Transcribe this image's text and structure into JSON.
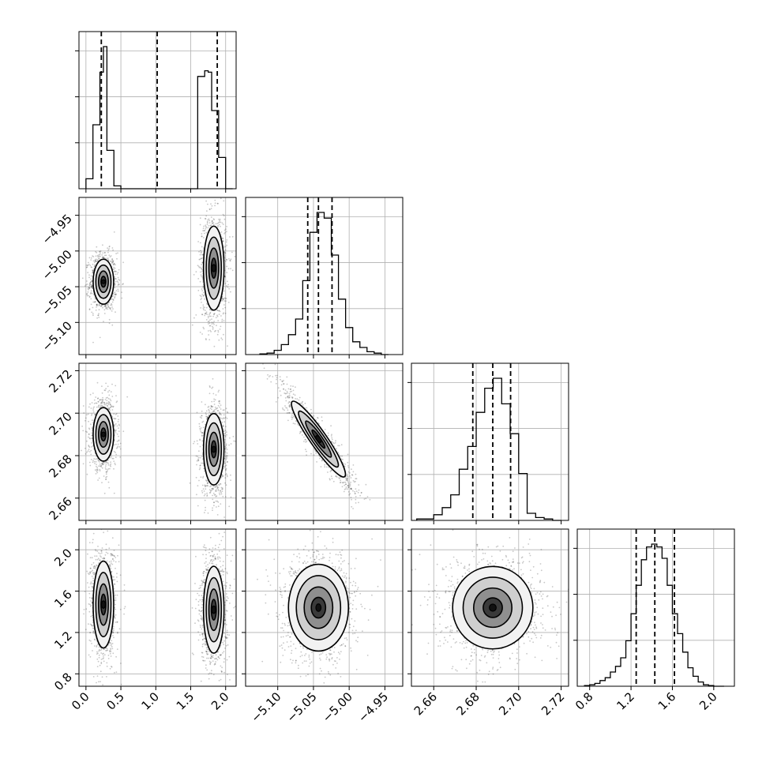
{
  "chart_data": {
    "type": "corner",
    "title": "",
    "note": "corner plot of 4 parameters: marginal histograms on the diagonal with dashed quantile lines, 2D density contours with scatter below",
    "parameters": [
      {
        "index": 0,
        "label": "",
        "range": [
          -0.1,
          2.15
        ],
        "ticks": [
          0.0,
          0.5,
          1.0,
          1.5,
          2.0
        ],
        "tick_labels": [
          "0.0",
          "0.5",
          "1.0",
          "1.5",
          "2.0"
        ],
        "quantile_lines": [
          0.22,
          1.02,
          1.88
        ]
      },
      {
        "index": 1,
        "label": "",
        "range": [
          -5.145,
          -4.925
        ],
        "ticks": [
          -5.1,
          -5.05,
          -5.0,
          -4.95
        ],
        "tick_labels": [
          "−5.10",
          "−5.05",
          "−5.00",
          "−4.95"
        ],
        "quantile_lines": [
          -5.058,
          -5.043,
          -5.024
        ]
      },
      {
        "index": 2,
        "label": "",
        "range": [
          2.6495,
          2.7235
        ],
        "ticks": [
          2.66,
          2.68,
          2.7,
          2.72
        ],
        "tick_labels": [
          "2.66",
          "2.68",
          "2.70",
          "2.72"
        ],
        "quantile_lines": [
          2.6784,
          2.6878,
          2.6962
        ]
      },
      {
        "index": 3,
        "label": "",
        "range": [
          0.68,
          2.2
        ],
        "ticks": [
          0.8,
          1.2,
          1.6,
          2.0
        ],
        "tick_labels": [
          "0.8",
          "1.2",
          "1.6",
          "2.0"
        ],
        "quantile_lines": [
          1.25,
          1.43,
          1.62
        ]
      }
    ],
    "histograms": [
      {
        "param": 0,
        "bin_edges": [
          0.0,
          0.1,
          0.2,
          0.25,
          0.3,
          0.4,
          0.5,
          0.6,
          1.6,
          1.7,
          1.75,
          1.8,
          1.9,
          2.0,
          2.1
        ],
        "counts": [
          0.07,
          0.45,
          0.82,
          1.0,
          0.27,
          0.02,
          0.0,
          0.0,
          0.79,
          0.83,
          0.82,
          0.55,
          0.22,
          0.0
        ]
      },
      {
        "param": 1,
        "bin_edges": [
          -5.125,
          -5.115,
          -5.105,
          -5.095,
          -5.085,
          -5.075,
          -5.065,
          -5.055,
          -5.045,
          -5.035,
          -5.025,
          -5.015,
          -5.005,
          -4.995,
          -4.985,
          -4.975,
          -4.965,
          -4.955,
          -4.945
        ],
        "counts": [
          0.005,
          0.01,
          0.03,
          0.07,
          0.14,
          0.25,
          0.52,
          0.86,
          1.0,
          0.96,
          0.7,
          0.39,
          0.19,
          0.09,
          0.05,
          0.02,
          0.01,
          0.0
        ]
      },
      {
        "param": 2,
        "bin_edges": [
          2.652,
          2.656,
          2.66,
          2.664,
          2.668,
          2.672,
          2.676,
          2.68,
          2.684,
          2.688,
          2.692,
          2.696,
          2.7,
          2.704,
          2.708,
          2.712,
          2.716,
          2.72
        ],
        "counts": [
          0.01,
          0.01,
          0.04,
          0.09,
          0.18,
          0.36,
          0.52,
          0.76,
          0.93,
          1.0,
          0.82,
          0.61,
          0.33,
          0.05,
          0.02,
          0.01,
          0.0
        ]
      },
      {
        "param": 3,
        "bin_edges": [
          0.75,
          0.8,
          0.85,
          0.9,
          0.95,
          1.0,
          1.05,
          1.1,
          1.15,
          1.2,
          1.25,
          1.3,
          1.35,
          1.4,
          1.45,
          1.5,
          1.55,
          1.6,
          1.65,
          1.7,
          1.75,
          1.8,
          1.85,
          1.9,
          1.95,
          2.0,
          2.05,
          2.1
        ],
        "counts": [
          0.005,
          0.01,
          0.02,
          0.04,
          0.06,
          0.1,
          0.14,
          0.2,
          0.32,
          0.51,
          0.71,
          0.89,
          0.98,
          1.0,
          0.98,
          0.9,
          0.71,
          0.51,
          0.37,
          0.24,
          0.13,
          0.07,
          0.03,
          0.01,
          0.005,
          0.0,
          0.0
        ]
      }
    ],
    "clusters_2d": [
      {
        "x": 0,
        "y": 1,
        "modes": [
          {
            "cx": 0.25,
            "cy": -5.043,
            "sx": 0.07,
            "sy": 0.015
          },
          {
            "cx": 1.83,
            "cy": -5.024,
            "sx": 0.07,
            "sy": 0.028
          }
        ]
      },
      {
        "x": 0,
        "y": 2,
        "modes": [
          {
            "cx": 0.25,
            "cy": 2.69,
            "sx": 0.07,
            "sy": 0.006
          },
          {
            "cx": 1.83,
            "cy": 2.683,
            "sx": 0.07,
            "sy": 0.008
          }
        ]
      },
      {
        "x": 1,
        "y": 2,
        "modes": [
          {
            "cx": -5.043,
            "cy": 2.6878,
            "sx": 0.018,
            "sy": 0.0085,
            "rho": -0.93
          }
        ]
      },
      {
        "x": 0,
        "y": 3,
        "modes": [
          {
            "cx": 0.25,
            "cy": 1.47,
            "sx": 0.07,
            "sy": 0.2
          },
          {
            "cx": 1.83,
            "cy": 1.42,
            "sx": 0.07,
            "sy": 0.2
          }
        ]
      },
      {
        "x": 1,
        "y": 3,
        "modes": [
          {
            "cx": -5.043,
            "cy": 1.44,
            "sx": 0.02,
            "sy": 0.2
          }
        ]
      },
      {
        "x": 2,
        "y": 3,
        "modes": [
          {
            "cx": 2.6878,
            "cy": 1.44,
            "sx": 0.009,
            "sy": 0.19
          }
        ]
      }
    ],
    "grid": true,
    "legend": "none",
    "scatter_color": "#000000",
    "line_color": "#000000",
    "grid_color": "#b0b0b0"
  }
}
